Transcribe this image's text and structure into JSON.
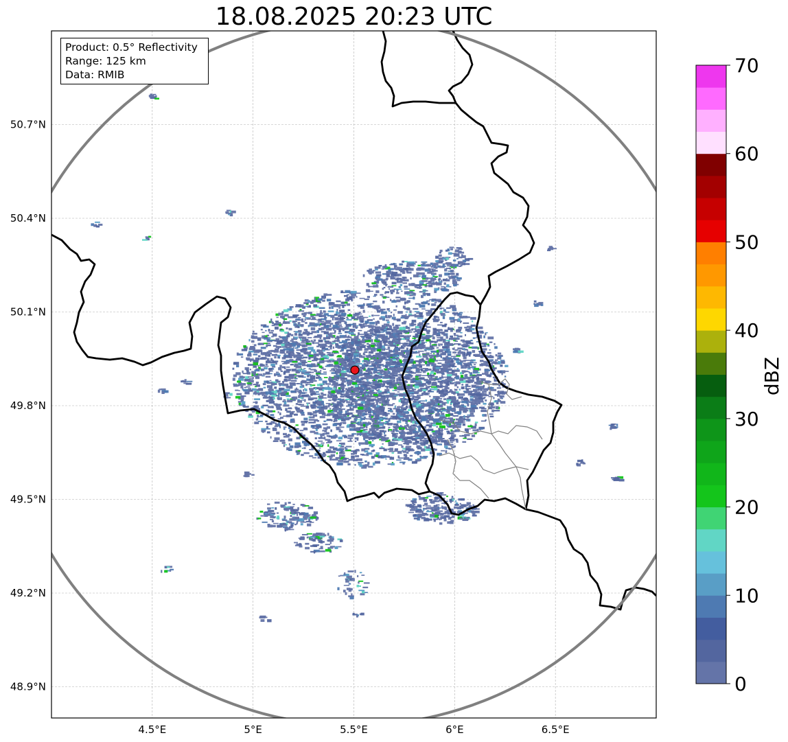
{
  "title": "18.08.2025 20:23 UTC",
  "info": {
    "product": "Product: 0.5° Reflectivity",
    "range": "Range: 125 km",
    "data": "Data: RMIB"
  },
  "map": {
    "lon_range": [
      4.0,
      7.0
    ],
    "lat_range": [
      48.8,
      51.0
    ],
    "lon_ticks": [
      {
        "value": 4.5,
        "label": "4.5°E"
      },
      {
        "value": 5.0,
        "label": "5°E"
      },
      {
        "value": 5.5,
        "label": "5.5°E"
      },
      {
        "value": 6.0,
        "label": "6°E"
      },
      {
        "value": 6.5,
        "label": "6.5°E"
      }
    ],
    "lat_ticks": [
      {
        "value": 50.7,
        "label": "50.7°N"
      },
      {
        "value": 50.4,
        "label": "50.4°N"
      },
      {
        "value": 50.1,
        "label": "50.1°N"
      },
      {
        "value": 49.8,
        "label": "49.8°N"
      },
      {
        "value": 49.5,
        "label": "49.5°N"
      },
      {
        "value": 49.2,
        "label": "49.2°N"
      },
      {
        "value": 48.9,
        "label": "48.9°N"
      }
    ],
    "radar_site": {
      "lon": 5.505,
      "lat": 49.914
    },
    "range_ring_color": "#808080",
    "radar_site_color": "#e8141c",
    "border_color": "#000000",
    "subdivision_color": "#808080",
    "gridlines": true
  },
  "colorbar": {
    "label": "dBZ",
    "min": 0,
    "max": 70,
    "step": 2.5,
    "ticks": [
      {
        "value": 0,
        "label": "0"
      },
      {
        "value": 10,
        "label": "10"
      },
      {
        "value": 20,
        "label": "20"
      },
      {
        "value": 30,
        "label": "30"
      },
      {
        "value": 40,
        "label": "40"
      },
      {
        "value": 50,
        "label": "50"
      },
      {
        "value": 60,
        "label": "60"
      },
      {
        "value": 70,
        "label": "70"
      }
    ],
    "colors": [
      "#6474a8",
      "#53669f",
      "#435d9f",
      "#4e7ab2",
      "#599ec6",
      "#66c1dc",
      "#61d6c5",
      "#40d474",
      "#14c51b",
      "#11b61a",
      "#0fa51a",
      "#0e9519",
      "#0b7d17",
      "#065e0f",
      "#4a7b0a",
      "#acb10c",
      "#fed700",
      "#feb801",
      "#ff9800",
      "#ff7f00",
      "#e60000",
      "#c60000",
      "#a30000",
      "#800000",
      "#ffe0ff",
      "#ffb0ff",
      "#ff6aff",
      "#ee37ee"
    ]
  }
}
